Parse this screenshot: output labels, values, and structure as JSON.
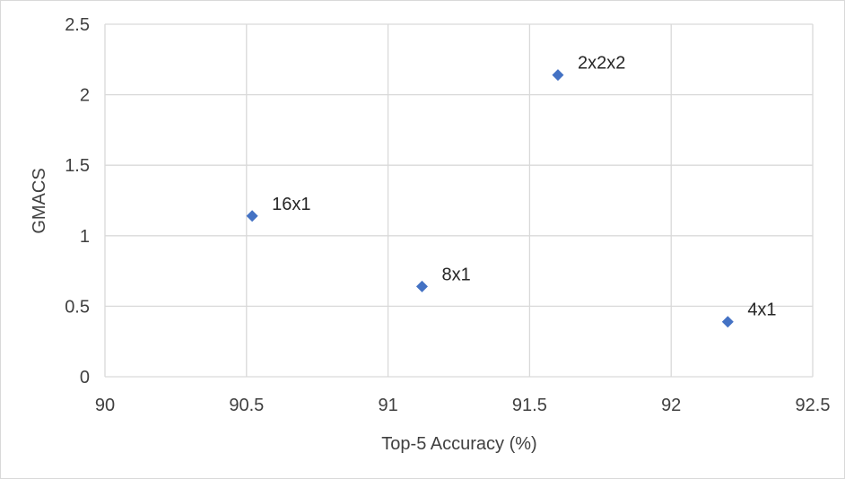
{
  "chart_data": {
    "type": "scatter",
    "title": "",
    "xlabel": "Top-5 Accuracy (%)",
    "ylabel": "GMACS",
    "xlim": [
      90,
      92.5
    ],
    "ylim": [
      0,
      2.5
    ],
    "x_ticks": [
      "90",
      "90.5",
      "91",
      "91.5",
      "92",
      "92.5"
    ],
    "y_ticks": [
      "0",
      "0.5",
      "1",
      "1.5",
      "2",
      "2.5"
    ],
    "grid": true,
    "legend": "none",
    "marker": "diamond",
    "color": "#4472c4",
    "points": [
      {
        "label": "16x1",
        "x": 90.52,
        "y": 1.14
      },
      {
        "label": "8x1",
        "x": 91.12,
        "y": 0.64
      },
      {
        "label": "2x2x2",
        "x": 91.6,
        "y": 2.14
      },
      {
        "label": "4x1",
        "x": 92.2,
        "y": 0.39
      }
    ]
  }
}
